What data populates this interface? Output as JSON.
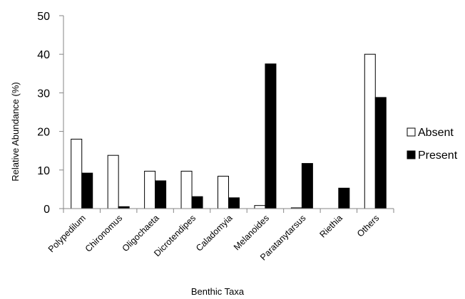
{
  "chart_data": {
    "type": "bar",
    "title": "",
    "xlabel": "Benthic Taxa",
    "ylabel": "Relative Abundance (%)",
    "ylim": [
      0,
      50
    ],
    "yticks": [
      0,
      10,
      20,
      30,
      40,
      50
    ],
    "grid": false,
    "legend_position": "right",
    "categories": [
      "Polypedilum",
      "Chironomus",
      "Oligochaeta",
      "Dicrotendipes",
      "Caladomyia",
      "Melanoides",
      "Paratanytarsus",
      "Riethia",
      "Others"
    ],
    "series": [
      {
        "name": "Absent",
        "color": "#ffffff",
        "values": [
          18,
          13.8,
          9.7,
          9.7,
          8.4,
          0.8,
          0.2,
          0,
          40
        ]
      },
      {
        "name": "Present",
        "color": "#000000",
        "values": [
          9.2,
          0.5,
          7.2,
          3.1,
          2.8,
          37.5,
          11.7,
          5.3,
          28.8
        ]
      }
    ]
  }
}
